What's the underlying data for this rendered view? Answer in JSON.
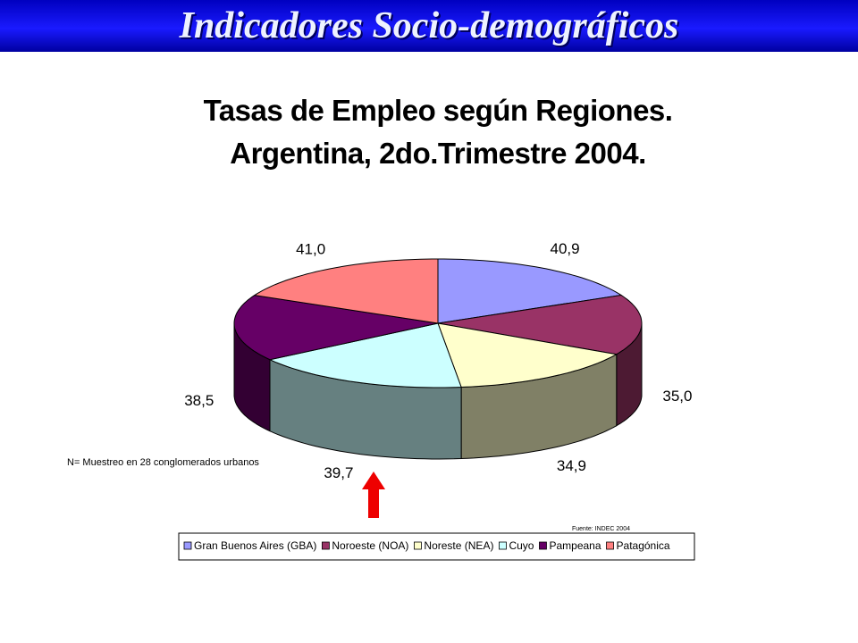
{
  "header": {
    "title": "Indicadores Socio-demográficos"
  },
  "chart_data": {
    "type": "pie",
    "title": "Tasas de Empleo según Regiones. Argentina, 2do.Trimestre 2004.",
    "categories": [
      "Gran Buenos Aires (GBA)",
      "Noroeste (NOA)",
      "Noreste (NEA)",
      "Cuyo",
      "Pampeana",
      "Patagónica"
    ],
    "values": [
      40.9,
      35.0,
      34.9,
      39.7,
      38.5,
      41.0
    ],
    "value_labels": [
      "40,9",
      "35,0",
      "34,9",
      "39,7",
      "38,5",
      "41,0"
    ],
    "colors": [
      "#9999ff",
      "#993366",
      "#ffffcc",
      "#ccffff",
      "#660066",
      "#ff8080"
    ],
    "note": "N= Muestreo en 28 conglomerados urbanos",
    "source": "Fuente: INDEC 2004"
  }
}
